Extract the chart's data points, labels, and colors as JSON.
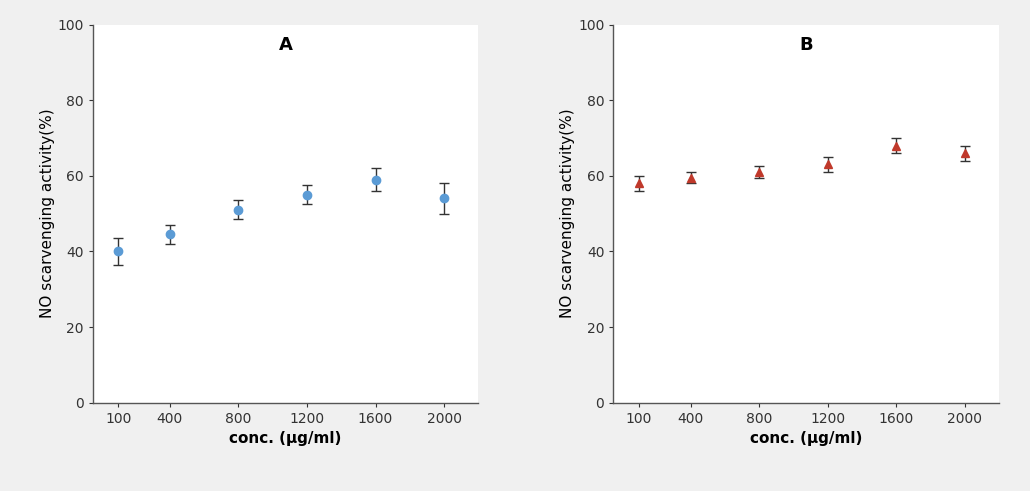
{
  "x": [
    100,
    400,
    800,
    1200,
    1600,
    2000
  ],
  "A_y": [
    40.0,
    44.5,
    51.0,
    55.0,
    59.0,
    54.0
  ],
  "A_yerr": [
    3.5,
    2.5,
    2.5,
    2.5,
    3.0,
    4.0
  ],
  "B_y": [
    58.0,
    59.5,
    61.0,
    63.0,
    68.0,
    66.0
  ],
  "B_yerr": [
    2.0,
    1.5,
    1.5,
    2.0,
    2.0,
    2.0
  ],
  "A_color": "#5b9bd5",
  "B_color": "#c0392b",
  "xlabel": "conc. (μg/ml)",
  "ylabel": "NO scarvenging activity(%)",
  "label_A": "A",
  "label_B": "B",
  "ylim": [
    0,
    100
  ],
  "yticks": [
    0,
    20,
    40,
    60,
    80,
    100
  ],
  "xticks": [
    100,
    400,
    800,
    1200,
    1600,
    2000
  ],
  "fig_bg_color": "#f0f0f0",
  "ax_bg_color": "#ffffff",
  "tick_label_fontsize": 10,
  "axis_label_fontsize": 11,
  "panel_label_fontsize": 13
}
